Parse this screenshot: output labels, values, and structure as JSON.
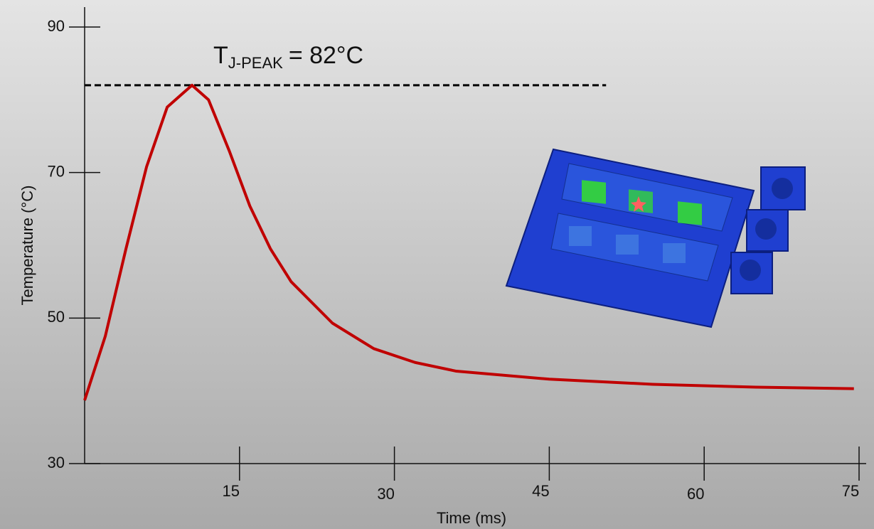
{
  "chart_data": {
    "type": "line",
    "x_label": "Time (ms)",
    "y_label": "Temperature (°C)",
    "annotation": {
      "main": "T",
      "sub": "J-PEAK",
      "rest": "= 82°C"
    },
    "reference_line": {
      "y": 82,
      "x_end": 50.5
    },
    "x": [
      0,
      2,
      4,
      6,
      8,
      10.4,
      12,
      14,
      16,
      18,
      20,
      24,
      28,
      32,
      36,
      45,
      55,
      65,
      74.5
    ],
    "series": [
      {
        "color": "#c00000",
        "values": [
          38.7,
          47.5,
          59.5,
          70.8,
          79,
          82,
          80,
          73,
          65.4,
          59.5,
          55,
          49.3,
          45.8,
          43.9,
          42.7,
          41.6,
          40.9,
          40.5,
          40.3
        ]
      }
    ],
    "xlim": [
      0,
      75
    ],
    "xticks": [
      15,
      30,
      45,
      60,
      75
    ],
    "ylim": [
      30,
      90
    ],
    "yticks": [
      30,
      50,
      70,
      90
    ]
  }
}
